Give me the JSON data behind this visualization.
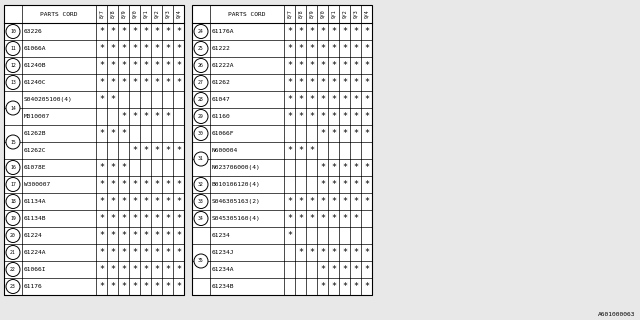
{
  "bg_color": "#e8e8e8",
  "table_bg": "#ffffff",
  "border_color": "#000000",
  "text_color": "#000000",
  "font_size": 4.5,
  "col_headers": [
    "8/7",
    "8/8",
    "8/9",
    "9/0",
    "9/1",
    "9/2",
    "9/3",
    "9/4"
  ],
  "left_table": {
    "rows": [
      {
        "ref": "10",
        "part": "63226",
        "stars": [
          1,
          1,
          1,
          1,
          1,
          1,
          1,
          1
        ],
        "grp_start": true,
        "grp_end": true
      },
      {
        "ref": "11",
        "part": "61066A",
        "stars": [
          1,
          1,
          1,
          1,
          1,
          1,
          1,
          1
        ],
        "grp_start": true,
        "grp_end": true
      },
      {
        "ref": "12",
        "part": "61240B",
        "stars": [
          1,
          1,
          1,
          1,
          1,
          1,
          1,
          1
        ],
        "grp_start": true,
        "grp_end": true
      },
      {
        "ref": "13",
        "part": "61240C",
        "stars": [
          1,
          1,
          1,
          1,
          1,
          1,
          1,
          1
        ],
        "grp_start": true,
        "grp_end": true
      },
      {
        "ref": "14",
        "part": "S040205100(4)",
        "stars": [
          1,
          1,
          0,
          0,
          0,
          0,
          0,
          0
        ],
        "grp_start": true,
        "grp_end": false
      },
      {
        "ref": "",
        "part": "M010007",
        "stars": [
          0,
          0,
          1,
          1,
          1,
          1,
          1,
          0
        ],
        "grp_start": false,
        "grp_end": true
      },
      {
        "ref": "15",
        "part": "61262B",
        "stars": [
          1,
          1,
          1,
          0,
          0,
          0,
          0,
          0
        ],
        "grp_start": true,
        "grp_end": false
      },
      {
        "ref": "",
        "part": "61262C",
        "stars": [
          0,
          0,
          0,
          1,
          1,
          1,
          1,
          1
        ],
        "grp_start": false,
        "grp_end": true
      },
      {
        "ref": "16",
        "part": "61078E",
        "stars": [
          1,
          1,
          1,
          0,
          0,
          0,
          0,
          0
        ],
        "grp_start": true,
        "grp_end": true
      },
      {
        "ref": "17",
        "part": "W300007",
        "stars": [
          1,
          1,
          1,
          1,
          1,
          1,
          1,
          1
        ],
        "grp_start": true,
        "grp_end": true
      },
      {
        "ref": "18",
        "part": "61134A",
        "stars": [
          1,
          1,
          1,
          1,
          1,
          1,
          1,
          1
        ],
        "grp_start": true,
        "grp_end": true
      },
      {
        "ref": "19",
        "part": "61134B",
        "stars": [
          1,
          1,
          1,
          1,
          1,
          1,
          1,
          1
        ],
        "grp_start": true,
        "grp_end": true
      },
      {
        "ref": "20",
        "part": "61224",
        "stars": [
          1,
          1,
          1,
          1,
          1,
          1,
          1,
          1
        ],
        "grp_start": true,
        "grp_end": true
      },
      {
        "ref": "21",
        "part": "61224A",
        "stars": [
          1,
          1,
          1,
          1,
          1,
          1,
          1,
          1
        ],
        "grp_start": true,
        "grp_end": true
      },
      {
        "ref": "22",
        "part": "61066I",
        "stars": [
          1,
          1,
          1,
          1,
          1,
          1,
          1,
          1
        ],
        "grp_start": true,
        "grp_end": true
      },
      {
        "ref": "23",
        "part": "61176",
        "stars": [
          1,
          1,
          1,
          1,
          1,
          1,
          1,
          1
        ],
        "grp_start": true,
        "grp_end": true
      }
    ]
  },
  "right_table": {
    "rows": [
      {
        "ref": "24",
        "part": "61176A",
        "stars": [
          1,
          1,
          1,
          1,
          1,
          1,
          1,
          1
        ],
        "grp_start": true,
        "grp_end": true
      },
      {
        "ref": "25",
        "part": "61222",
        "stars": [
          1,
          1,
          1,
          1,
          1,
          1,
          1,
          1
        ],
        "grp_start": true,
        "grp_end": true
      },
      {
        "ref": "26",
        "part": "61222A",
        "stars": [
          1,
          1,
          1,
          1,
          1,
          1,
          1,
          1
        ],
        "grp_start": true,
        "grp_end": true
      },
      {
        "ref": "27",
        "part": "61262",
        "stars": [
          1,
          1,
          1,
          1,
          1,
          1,
          1,
          1
        ],
        "grp_start": true,
        "grp_end": true
      },
      {
        "ref": "28",
        "part": "61047",
        "stars": [
          1,
          1,
          1,
          1,
          1,
          1,
          1,
          1
        ],
        "grp_start": true,
        "grp_end": true
      },
      {
        "ref": "29",
        "part": "61160",
        "stars": [
          1,
          1,
          1,
          1,
          1,
          1,
          1,
          1
        ],
        "grp_start": true,
        "grp_end": true
      },
      {
        "ref": "30",
        "part": "61066F",
        "stars": [
          0,
          0,
          0,
          1,
          1,
          1,
          1,
          1
        ],
        "grp_start": true,
        "grp_end": true
      },
      {
        "ref": "31",
        "part": "N600004",
        "stars": [
          1,
          1,
          1,
          0,
          0,
          0,
          0,
          0
        ],
        "grp_start": true,
        "grp_end": false
      },
      {
        "ref": "",
        "part": "N023706000(4)",
        "stars": [
          0,
          0,
          0,
          1,
          1,
          1,
          1,
          1
        ],
        "grp_start": false,
        "grp_end": true
      },
      {
        "ref": "32",
        "part": "B010106120(4)",
        "stars": [
          0,
          0,
          0,
          1,
          1,
          1,
          1,
          1
        ],
        "grp_start": true,
        "grp_end": true
      },
      {
        "ref": "33",
        "part": "S046305163(2)",
        "stars": [
          1,
          1,
          1,
          1,
          1,
          1,
          1,
          1
        ],
        "grp_start": true,
        "grp_end": true
      },
      {
        "ref": "34",
        "part": "S045305160(4)",
        "stars": [
          1,
          1,
          1,
          1,
          1,
          1,
          1,
          0
        ],
        "grp_start": true,
        "grp_end": true
      },
      {
        "ref": "35",
        "part": "61234",
        "stars": [
          1,
          0,
          0,
          0,
          0,
          0,
          0,
          0
        ],
        "grp_start": true,
        "grp_end": false
      },
      {
        "ref": "",
        "part": "61234J",
        "stars": [
          0,
          1,
          1,
          1,
          1,
          1,
          1,
          1
        ],
        "grp_start": false,
        "grp_end": false
      },
      {
        "ref": "",
        "part": "61234A",
        "stars": [
          0,
          0,
          0,
          1,
          1,
          1,
          1,
          1
        ],
        "grp_start": false,
        "grp_end": false
      },
      {
        "ref": "",
        "part": "61234B",
        "stars": [
          0,
          0,
          0,
          1,
          1,
          1,
          1,
          1
        ],
        "grp_start": false,
        "grp_end": true
      }
    ]
  },
  "footer": "A601000063"
}
